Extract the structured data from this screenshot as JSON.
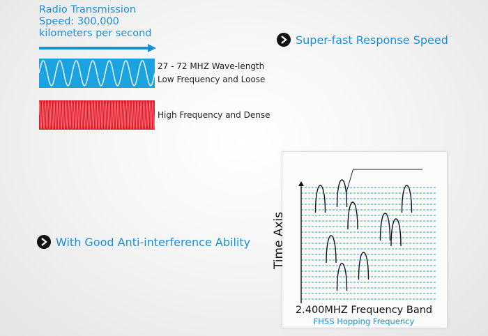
{
  "speed": {
    "lines": [
      "Radio Transmission",
      "Speed: 300,000",
      "kilometers per second"
    ]
  },
  "low_wave": {
    "label_lines": [
      "27 - 72 MHZ Wave-length",
      "Low Frequency and Loose"
    ],
    "cycles": 7,
    "color": "#1aa3e0"
  },
  "high_wave": {
    "label": "High Frequency and Dense",
    "cycles": 40,
    "color": "#e01c2b"
  },
  "features": {
    "response": "Super-fast Response Speed",
    "interference": "With Good Anti-interference Ability"
  },
  "diagram": {
    "y_axis_label": "Time Axis",
    "x_axis_label": "2.400MHZ Frequency Band",
    "caption": "FHSS Hopping Frequency",
    "grid_color": "#1aa3e0",
    "channel_lines": 21,
    "hops": [
      {
        "channel": 1,
        "slot": 1
      },
      {
        "channel": 3,
        "slot": 0
      },
      {
        "channel": 4,
        "slot": 4
      },
      {
        "channel": 7,
        "slot": 6
      },
      {
        "channel": 9,
        "slot": 1
      },
      {
        "channel": 8,
        "slot": 7
      },
      {
        "channel": 2,
        "slot": 10
      },
      {
        "channel": 5,
        "slot": 13
      },
      {
        "channel": 3,
        "slot": 15
      }
    ]
  }
}
